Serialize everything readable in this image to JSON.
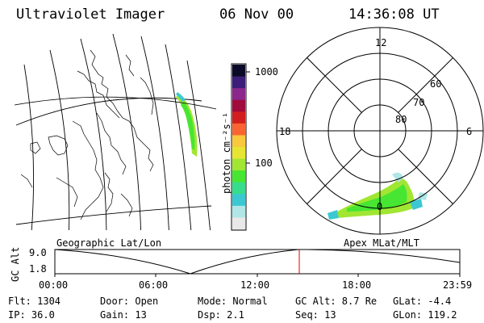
{
  "header": {
    "title": "Ultraviolet Imager",
    "date": "06 Nov 00",
    "time": "14:36:08 UT"
  },
  "colorbar": {
    "unit_label": "photon cm⁻²s⁻¹",
    "tick_labels": [
      "1000",
      "100"
    ],
    "colors": [
      "#e8e8e8",
      "#b0e6e6",
      "#3cc8d2",
      "#37dc8c",
      "#46e632",
      "#a0e632",
      "#e6e632",
      "#fac83c",
      "#fa6432",
      "#d21e1e",
      "#a00a3c",
      "#8c288c",
      "#3c1e78",
      "#0a0a28"
    ]
  },
  "map_panel": {
    "label": "Geographic Lat/Lon",
    "aurora_colors": [
      "#46e632",
      "#a0e632",
      "#3cc8d2"
    ]
  },
  "polar_panel": {
    "label": "Apex MLat/MLT",
    "mlt_labels": [
      "12",
      "18",
      "6",
      "0"
    ],
    "lat_labels": [
      "60",
      "70",
      "80"
    ]
  },
  "altitude_plot": {
    "ylabel": "GC Alt",
    "ytick_labels": [
      "9.0",
      "1.8"
    ],
    "xtick_labels": [
      "00:00",
      "06:00",
      "12:00",
      "18:00",
      "23:59"
    ],
    "marker_color": "#dc0000"
  },
  "status": {
    "flt": "Flt: 1304",
    "ip": "IP: 36.0",
    "door": "Door: Open",
    "gain": "Gain: 13",
    "mode": "Mode: Normal",
    "dsp": "Dsp:     2.1",
    "gc_alt": "GC Alt: 8.7 Re",
    "seq": "Seq: 13",
    "glat": "GLat:   -4.4",
    "glon": "GLon: 119.2"
  }
}
